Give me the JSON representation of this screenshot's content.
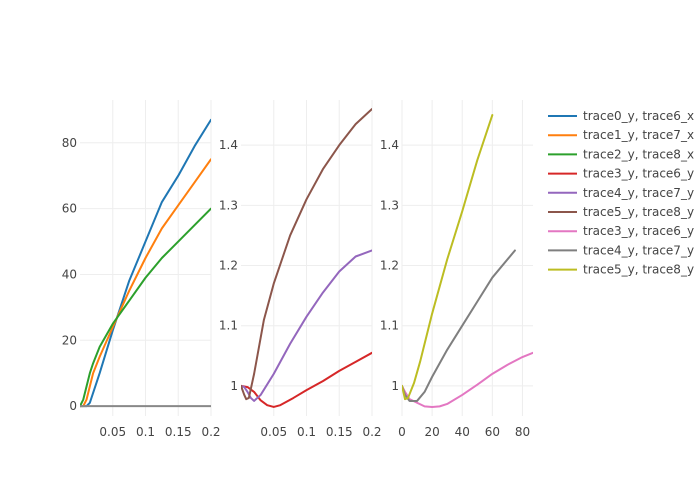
{
  "chart_data": {
    "type": "line",
    "grid": true,
    "legend_position": "right",
    "subplots": [
      {
        "id": "left",
        "xlim": [
          0,
          0.2
        ],
        "ylim": [
          -3,
          93
        ],
        "x_ticks": [
          0.05,
          0.1,
          0.15,
          0.2
        ],
        "x_tick_labels": [
          "0.05",
          "0.1",
          "0.15",
          "0.2"
        ],
        "y_ticks": [
          0,
          20,
          40,
          60,
          80
        ],
        "y_tick_labels": [
          "0",
          "20",
          "40",
          "60",
          "80"
        ],
        "series": [
          {
            "name": "trace0_y, trace6_x",
            "color": "#1f77b4",
            "x": [
              0,
              0.005,
              0.01,
              0.015,
              0.02,
              0.03,
              0.05,
              0.075,
              0.1,
              0.125,
              0.15,
              0.175,
              0.2
            ],
            "y": [
              0,
              0,
              0,
              1,
              4,
              10,
              23,
              38,
              50,
              62,
              70,
              79,
              87
            ]
          },
          {
            "name": "trace1_y, trace7_x",
            "color": "#ff7f0e",
            "x": [
              0,
              0.005,
              0.01,
              0.015,
              0.02,
              0.03,
              0.05,
              0.075,
              0.1,
              0.125,
              0.15,
              0.175,
              0.2
            ],
            "y": [
              0,
              0,
              2,
              6,
              10,
              15,
              24,
              35,
              45,
              54,
              61,
              68,
              75
            ]
          },
          {
            "name": "trace2_y, trace8_x",
            "color": "#2ca02c",
            "x": [
              0,
              0.005,
              0.01,
              0.015,
              0.02,
              0.03,
              0.05,
              0.075,
              0.1,
              0.125,
              0.15,
              0.175,
              0.2
            ],
            "y": [
              0,
              2,
              6,
              10,
              13,
              18,
              25,
              32,
              39,
              45,
              50,
              55,
              60
            ]
          },
          {
            "name": "",
            "color": "#888888",
            "x": [
              0,
              0.2
            ],
            "y": [
              0,
              0
            ]
          }
        ]
      },
      {
        "id": "middle",
        "xlim": [
          0,
          0.2
        ],
        "ylim": [
          0.95,
          1.475
        ],
        "x_ticks": [
          0.05,
          0.1,
          0.15,
          0.2
        ],
        "x_tick_labels": [
          "0.05",
          "0.1",
          "0.15",
          "0.2"
        ],
        "y_ticks": [
          1.0,
          1.1,
          1.2,
          1.3,
          1.4
        ],
        "y_tick_labels": [
          "1",
          "1.1",
          "1.2",
          "1.3",
          "1.4"
        ],
        "series": [
          {
            "name": "trace3_y, trace6_y",
            "color": "#d62728",
            "x": [
              0,
              0.01,
              0.02,
              0.03,
              0.04,
              0.05,
              0.06,
              0.08,
              0.1,
              0.125,
              0.15,
              0.175,
              0.2
            ],
            "y": [
              1.0,
              0.998,
              0.99,
              0.976,
              0.968,
              0.965,
              0.968,
              0.98,
              0.993,
              1.008,
              1.025,
              1.04,
              1.055
            ]
          },
          {
            "name": "trace4_y, trace7_y",
            "color": "#9467bd",
            "x": [
              0,
              0.005,
              0.01,
              0.015,
              0.02,
              0.03,
              0.05,
              0.075,
              0.1,
              0.125,
              0.15,
              0.175,
              0.2
            ],
            "y": [
              1.0,
              0.998,
              0.99,
              0.98,
              0.975,
              0.985,
              1.02,
              1.07,
              1.115,
              1.155,
              1.19,
              1.215,
              1.225
            ]
          },
          {
            "name": "trace5_y, trace8_y",
            "color": "#8c564b",
            "x": [
              0,
              0.005,
              0.008,
              0.012,
              0.02,
              0.035,
              0.05,
              0.075,
              0.1,
              0.125,
              0.15,
              0.175,
              0.2
            ],
            "y": [
              1.0,
              0.985,
              0.978,
              0.98,
              1.02,
              1.11,
              1.17,
              1.25,
              1.31,
              1.36,
              1.4,
              1.435,
              1.46
            ]
          }
        ]
      },
      {
        "id": "right",
        "xlim": [
          0,
          87
        ],
        "ylim": [
          0.95,
          1.475
        ],
        "x_ticks": [
          0,
          20,
          40,
          60,
          80
        ],
        "x_tick_labels": [
          "0",
          "20",
          "40",
          "60",
          "80"
        ],
        "y_ticks": [
          1.0,
          1.1,
          1.2,
          1.3,
          1.4
        ],
        "y_tick_labels": [
          "1",
          "1.1",
          "1.2",
          "1.3",
          "1.4"
        ],
        "series": [
          {
            "name": "trace3_y, trace6_y",
            "color": "#e377c2",
            "x": [
              0,
              2,
              5,
              10,
              15,
              20,
              25,
              30,
              40,
              50,
              60,
              70,
              80,
              87
            ],
            "y": [
              1.0,
              0.99,
              0.978,
              0.972,
              0.966,
              0.965,
              0.966,
              0.97,
              0.985,
              1.002,
              1.02,
              1.035,
              1.048,
              1.055
            ]
          },
          {
            "name": "trace4_y, trace7_y",
            "color": "#7f7f7f",
            "x": [
              0,
              2,
              5,
              10,
              15,
              20,
              30,
              40,
              50,
              60,
              75
            ],
            "y": [
              1.0,
              0.985,
              0.975,
              0.975,
              0.99,
              1.015,
              1.06,
              1.1,
              1.14,
              1.18,
              1.225
            ]
          },
          {
            "name": "trace5_y, trace8_y",
            "color": "#bcbd22",
            "x": [
              0,
              2,
              4,
              8,
              12,
              20,
              30,
              40,
              50,
              60
            ],
            "y": [
              1.0,
              0.978,
              0.98,
              1.005,
              1.04,
              1.12,
              1.21,
              1.29,
              1.375,
              1.45
            ]
          }
        ]
      }
    ]
  }
}
